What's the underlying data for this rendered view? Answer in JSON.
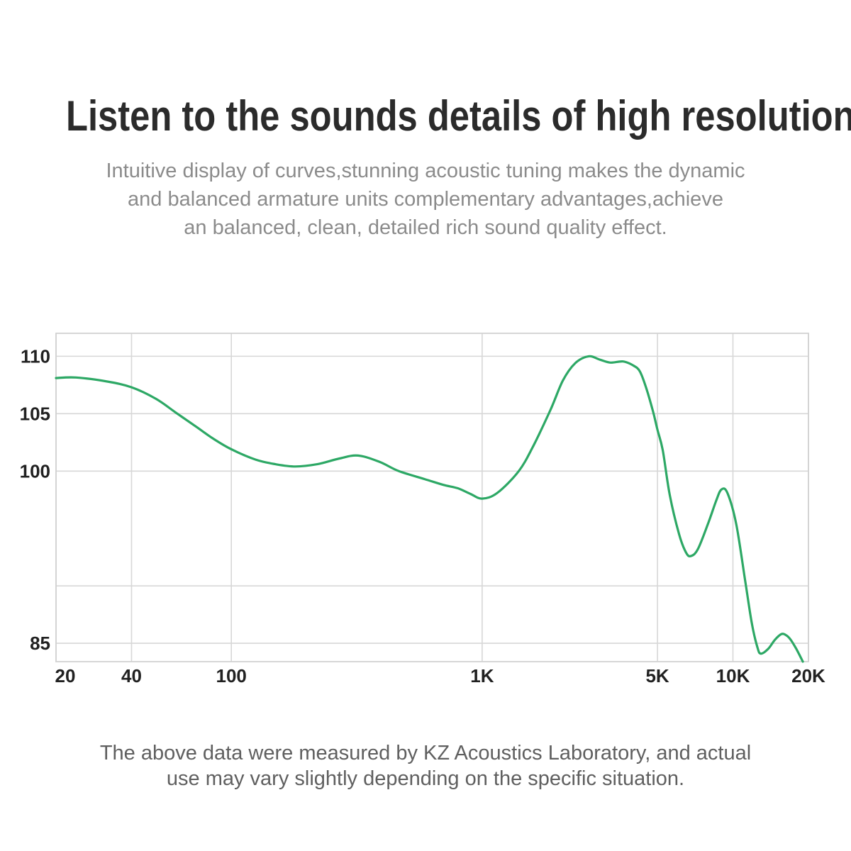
{
  "page": {
    "title": "Listen to the sounds details of high resolution",
    "subtitle_lines": [
      "Intuitive display of curves,stunning acoustic tuning makes the dynamic",
      "and balanced armature units complementary advantages,achieve",
      "an balanced, clean, detailed rich sound quality effect."
    ],
    "footer_lines": [
      "The above data were measured by KZ Acoustics Laboratory, and actual",
      "use may vary slightly depending on the specific situation."
    ]
  },
  "colors": {
    "title_text": "#2b2b2b",
    "subtitle_text": "#8b8b8b",
    "footer_text": "#5f5f5f",
    "axis_label_text": "#212121",
    "grid_line": "#d7d7d7",
    "plot_border": "#d2d2d2",
    "curve_green": "#2da865",
    "background": "#ffffff"
  },
  "chart_data": {
    "type": "line",
    "title": "",
    "xlabel": "",
    "ylabel": "",
    "x_scale": "log",
    "xlim": [
      20,
      20000
    ],
    "ylim": [
      83.4,
      112
    ],
    "grid": true,
    "legend_position": "none",
    "x_ticks": [
      {
        "value": 20,
        "label": "20"
      },
      {
        "value": 40,
        "label": "40"
      },
      {
        "value": 100,
        "label": "100"
      },
      {
        "value": 1000,
        "label": "1K"
      },
      {
        "value": 5000,
        "label": "5K"
      },
      {
        "value": 10000,
        "label": "10K"
      },
      {
        "value": 20000,
        "label": "20K"
      }
    ],
    "y_tick_labels": [
      {
        "value": 110,
        "label": "110"
      },
      {
        "value": 105,
        "label": "105"
      },
      {
        "value": 100,
        "label": "100"
      },
      {
        "value": 85,
        "label": "85"
      }
    ],
    "y_gridline_values": [
      110,
      105,
      100,
      90,
      85
    ],
    "series": [
      {
        "name": "frequency-response-curve",
        "color": "#2da865",
        "points": [
          [
            20,
            108.1
          ],
          [
            24,
            108.15
          ],
          [
            32,
            107.8
          ],
          [
            40,
            107.3
          ],
          [
            50,
            106.3
          ],
          [
            60,
            105.1
          ],
          [
            72,
            103.9
          ],
          [
            85,
            102.8
          ],
          [
            100,
            101.9
          ],
          [
            125,
            101.0
          ],
          [
            150,
            100.6
          ],
          [
            180,
            100.4
          ],
          [
            220,
            100.6
          ],
          [
            270,
            101.1
          ],
          [
            320,
            101.35
          ],
          [
            390,
            100.8
          ],
          [
            465,
            100.0
          ],
          [
            590,
            99.3
          ],
          [
            700,
            98.8
          ],
          [
            800,
            98.5
          ],
          [
            900,
            98.0
          ],
          [
            1000,
            97.6
          ],
          [
            1150,
            98.1
          ],
          [
            1400,
            100.0
          ],
          [
            1600,
            102.2
          ],
          [
            1870,
            105.3
          ],
          [
            2100,
            107.9
          ],
          [
            2350,
            109.4
          ],
          [
            2660,
            110.0
          ],
          [
            2950,
            109.7
          ],
          [
            3250,
            109.45
          ],
          [
            3650,
            109.55
          ],
          [
            4000,
            109.2
          ],
          [
            4250,
            108.7
          ],
          [
            4500,
            107.3
          ],
          [
            4800,
            105.2
          ],
          [
            5000,
            103.6
          ],
          [
            5250,
            101.8
          ],
          [
            5600,
            97.9
          ],
          [
            6100,
            94.5
          ],
          [
            6500,
            92.9
          ],
          [
            6800,
            92.6
          ],
          [
            7250,
            93.2
          ],
          [
            7950,
            95.4
          ],
          [
            8600,
            97.5
          ],
          [
            9000,
            98.4
          ],
          [
            9500,
            98.1
          ],
          [
            10300,
            95.4
          ],
          [
            11200,
            90.4
          ],
          [
            11900,
            86.7
          ],
          [
            12500,
            84.7
          ],
          [
            12900,
            84.1
          ],
          [
            13800,
            84.5
          ],
          [
            14700,
            85.3
          ],
          [
            15600,
            85.8
          ],
          [
            16300,
            85.7
          ],
          [
            17000,
            85.3
          ],
          [
            17900,
            84.5
          ],
          [
            19000,
            83.4
          ]
        ]
      }
    ]
  }
}
